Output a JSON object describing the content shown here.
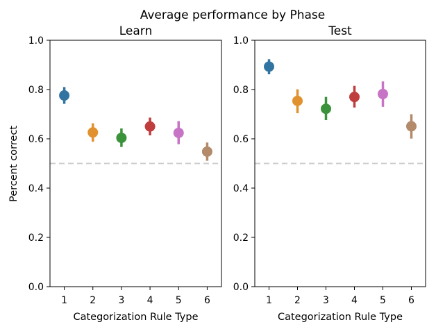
{
  "chart_data": {
    "type": "scatter",
    "title": "Average performance by Phase",
    "ylabel": "Percent correct",
    "reference_line": 0.5,
    "ylim": [
      0.0,
      1.0
    ],
    "yticks": [
      "0.0",
      "0.2",
      "0.4",
      "0.6",
      "0.8",
      "1.0"
    ],
    "categories": [
      "1",
      "2",
      "3",
      "4",
      "5",
      "6"
    ],
    "colors": [
      "#3274a1",
      "#e1922f",
      "#3a923a",
      "#c03d3e",
      "#c774c7",
      "#b38a6a"
    ],
    "grid": false,
    "panels": [
      {
        "title": "Learn",
        "xlabel": "Categorization Rule Type",
        "values": [
          0.776,
          0.626,
          0.604,
          0.65,
          0.624,
          0.548
        ],
        "error_low": [
          0.742,
          0.588,
          0.567,
          0.614,
          0.578,
          0.511
        ],
        "error_high": [
          0.81,
          0.663,
          0.642,
          0.686,
          0.672,
          0.585
        ]
      },
      {
        "title": "Test",
        "xlabel": "Categorization Rule Type",
        "values": [
          0.893,
          0.754,
          0.722,
          0.77,
          0.782,
          0.651
        ],
        "error_low": [
          0.862,
          0.704,
          0.676,
          0.727,
          0.73,
          0.601
        ],
        "error_high": [
          0.923,
          0.801,
          0.77,
          0.815,
          0.833,
          0.7
        ]
      }
    ]
  }
}
